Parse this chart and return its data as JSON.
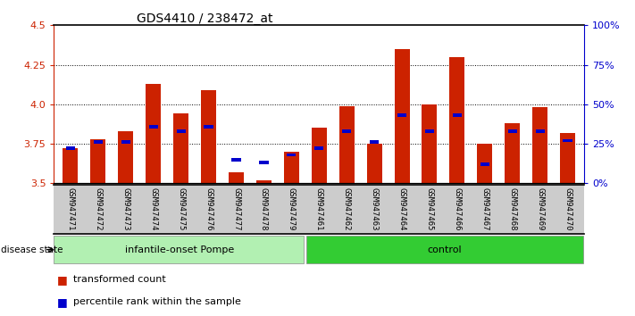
{
  "title": "GDS4410 / 238472_at",
  "samples": [
    "GSM947471",
    "GSM947472",
    "GSM947473",
    "GSM947474",
    "GSM947475",
    "GSM947476",
    "GSM947477",
    "GSM947478",
    "GSM947479",
    "GSM947461",
    "GSM947462",
    "GSM947463",
    "GSM947464",
    "GSM947465",
    "GSM947466",
    "GSM947467",
    "GSM947468",
    "GSM947469",
    "GSM947470"
  ],
  "transformed_count": [
    3.72,
    3.78,
    3.83,
    4.13,
    3.94,
    4.09,
    3.57,
    3.52,
    3.7,
    3.85,
    3.99,
    3.75,
    4.35,
    4.0,
    4.3,
    3.75,
    3.88,
    3.98,
    3.82
  ],
  "percentile_rank": [
    3.72,
    3.76,
    3.76,
    3.86,
    3.83,
    3.86,
    3.65,
    3.63,
    3.68,
    3.72,
    3.83,
    3.76,
    3.93,
    3.83,
    3.93,
    3.62,
    3.83,
    3.83,
    3.77
  ],
  "group_labels": [
    "infantile-onset Pompe",
    "control"
  ],
  "group_counts": [
    9,
    10
  ],
  "group_color_1": "#b2f0b2",
  "group_color_2": "#33cc33",
  "bar_color": "#cc2200",
  "blue_color": "#0000cc",
  "ymin": 3.5,
  "ymax": 4.5,
  "yticks": [
    3.5,
    3.75,
    4.0,
    4.25,
    4.5
  ],
  "right_yticks": [
    0,
    25,
    50,
    75,
    100
  ],
  "tick_area_color": "#cccccc"
}
